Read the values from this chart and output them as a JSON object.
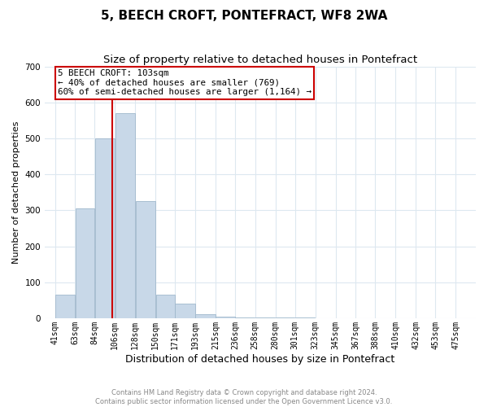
{
  "title": "5, BEECH CROFT, PONTEFRACT, WF8 2WA",
  "subtitle": "Size of property relative to detached houses in Pontefract",
  "xlabel": "Distribution of detached houses by size in Pontefract",
  "ylabel": "Number of detached properties",
  "footnote1": "Contains HM Land Registry data © Crown copyright and database right 2024.",
  "footnote2": "Contains public sector information licensed under the Open Government Licence v3.0.",
  "bar_left_edges": [
    41,
    63,
    84,
    106,
    128,
    150,
    171,
    193,
    215,
    236,
    258,
    280,
    301,
    323,
    345,
    367,
    388,
    410,
    432,
    453
  ],
  "bar_widths": [
    22,
    21,
    22,
    22,
    22,
    21,
    22,
    22,
    21,
    22,
    22,
    21,
    22,
    22,
    22,
    21,
    22,
    22,
    21,
    22
  ],
  "bar_heights": [
    65,
    305,
    500,
    570,
    325,
    65,
    40,
    12,
    5,
    3,
    2,
    1,
    1,
    0,
    0,
    0,
    0,
    0,
    0,
    0
  ],
  "bar_color": "#c8d8e8",
  "bar_edge_color": "#a0b8cc",
  "ylim": [
    0,
    700
  ],
  "yticks": [
    0,
    100,
    200,
    300,
    400,
    500,
    600,
    700
  ],
  "xtick_labels": [
    "41sqm",
    "63sqm",
    "84sqm",
    "106sqm",
    "128sqm",
    "150sqm",
    "171sqm",
    "193sqm",
    "215sqm",
    "236sqm",
    "258sqm",
    "280sqm",
    "301sqm",
    "323sqm",
    "345sqm",
    "367sqm",
    "388sqm",
    "410sqm",
    "432sqm",
    "453sqm",
    "475sqm"
  ],
  "xtick_positions": [
    41,
    63,
    84,
    106,
    128,
    150,
    171,
    193,
    215,
    236,
    258,
    280,
    301,
    323,
    345,
    367,
    388,
    410,
    432,
    453,
    475
  ],
  "vline_x": 103,
  "vline_color": "#cc0000",
  "annotation_line1": "5 BEECH CROFT: 103sqm",
  "annotation_line2": "← 40% of detached houses are smaller (769)",
  "annotation_line3": "60% of semi-detached houses are larger (1,164) →",
  "annotation_box_color": "#ffffff",
  "annotation_box_edge": "#cc0000",
  "grid_color": "#dde8f0",
  "background_color": "#ffffff",
  "title_fontsize": 11,
  "subtitle_fontsize": 9.5,
  "xlabel_fontsize": 9,
  "ylabel_fontsize": 8,
  "annotation_fontsize": 7.8,
  "tick_fontsize": 7,
  "footnote_fontsize": 6
}
